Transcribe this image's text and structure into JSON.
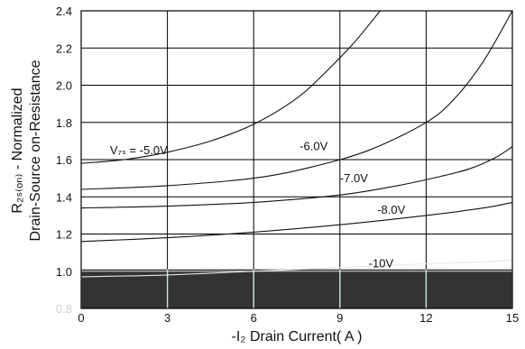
{
  "chart_data": {
    "type": "line",
    "title": "",
    "xlabel": "-I₂ Drain Current( A )",
    "ylabel_line1": "R₂ₛ₍ₒₙ₎ - Normalized",
    "ylabel_line2": "Drain-Source on-Resistance",
    "xlim": [
      0,
      15
    ],
    "ylim": [
      0.8,
      2.4
    ],
    "x_ticks": [
      0,
      3,
      6,
      9,
      12,
      15
    ],
    "x_tick_labels": [
      "0",
      "3",
      "6",
      "9",
      "12",
      "15"
    ],
    "y_ticks": [
      0.8,
      1.0,
      1.2,
      1.4,
      1.6,
      1.8,
      2.0,
      2.2,
      2.4
    ],
    "y_tick_labels": [
      "0.8",
      "1.0",
      "1.2",
      "1.4",
      "1.6",
      "1.8",
      "2.0",
      "2.2",
      "2.4"
    ],
    "grid": true,
    "series": [
      {
        "name": "V₇ₛ = -5.0V",
        "x": [
          0,
          1.5,
          3,
          4.5,
          6,
          7.5,
          8.5,
          9.5,
          10.4
        ],
        "y": [
          1.58,
          1.6,
          1.64,
          1.7,
          1.79,
          1.93,
          2.07,
          2.23,
          2.4
        ]
      },
      {
        "name": "-6.0V",
        "x": [
          0,
          3,
          6,
          8,
          10,
          12,
          13,
          14,
          15
        ],
        "y": [
          1.44,
          1.46,
          1.5,
          1.56,
          1.65,
          1.8,
          1.93,
          2.13,
          2.4
        ]
      },
      {
        "name": "-7.0V",
        "x": [
          0,
          3,
          6,
          9,
          11,
          12.5,
          13.5,
          14.4,
          15
        ],
        "y": [
          1.34,
          1.35,
          1.37,
          1.41,
          1.46,
          1.51,
          1.55,
          1.61,
          1.67
        ]
      },
      {
        "name": "-8.0V",
        "x": [
          0,
          3,
          6,
          9,
          12,
          14,
          15
        ],
        "y": [
          1.16,
          1.18,
          1.21,
          1.25,
          1.3,
          1.34,
          1.37
        ]
      },
      {
        "name": "-10V",
        "x": [
          0,
          3,
          6,
          9,
          12,
          14,
          15
        ],
        "y": [
          0.97,
          0.98,
          1.0,
          1.02,
          1.04,
          1.05,
          1.06
        ]
      }
    ],
    "annotations": [
      {
        "text": "V₇ₛ = -5.0V",
        "x": 1.0,
        "y": 1.63
      },
      {
        "text": "-6.0V",
        "x": 7.6,
        "y": 1.65
      },
      {
        "text": "-7.0V",
        "x": 9.0,
        "y": 1.48
      },
      {
        "text": "-8.0V",
        "x": 10.3,
        "y": 1.31
      },
      {
        "text": "-10V",
        "x": 10.0,
        "y": 1.02
      }
    ]
  }
}
